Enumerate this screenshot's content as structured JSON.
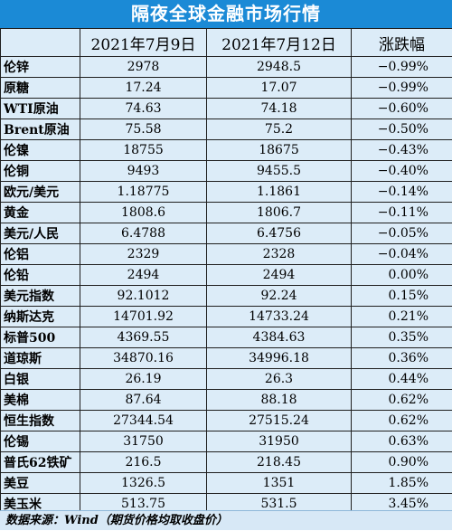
{
  "title": "隔夜全球金融市场行情",
  "headers": [
    "",
    "2021年7月9日",
    "2021年7月12日",
    "涨跌幅"
  ],
  "rows": [
    {
      "name": "伦锌",
      "d1": "2978",
      "d2": "2948.5",
      "chg": "−0.99%"
    },
    {
      "name": "原糖",
      "d1": "17.24",
      "d2": "17.07",
      "chg": "−0.99%"
    },
    {
      "name": "WTI原油",
      "d1": "74.63",
      "d2": "74.18",
      "chg": "−0.60%"
    },
    {
      "name": "Brent原油",
      "d1": "75.58",
      "d2": "75.2",
      "chg": "−0.50%"
    },
    {
      "name": "伦镍",
      "d1": "18755",
      "d2": "18675",
      "chg": "−0.43%"
    },
    {
      "name": "伦铜",
      "d1": "9493",
      "d2": "9455.5",
      "chg": "−0.40%"
    },
    {
      "name": "欧元/美元",
      "d1": "1.18775",
      "d2": "1.1861",
      "chg": "−0.14%"
    },
    {
      "name": "黄金",
      "d1": "1808.6",
      "d2": "1806.7",
      "chg": "−0.11%"
    },
    {
      "name": "美元/人民",
      "d1": "6.4788",
      "d2": "6.4756",
      "chg": "−0.05%"
    },
    {
      "name": "伦铝",
      "d1": "2329",
      "d2": "2328",
      "chg": "−0.04%"
    },
    {
      "name": "伦铅",
      "d1": "2494",
      "d2": "2494",
      "chg": "0.00%"
    },
    {
      "name": "美元指数",
      "d1": "92.1012",
      "d2": "92.24",
      "chg": "0.15%"
    },
    {
      "name": "纳斯达克",
      "d1": "14701.92",
      "d2": "14733.24",
      "chg": "0.21%"
    },
    {
      "name": "标普500",
      "d1": "4369.55",
      "d2": "4384.63",
      "chg": "0.35%"
    },
    {
      "name": "道琼斯",
      "d1": "34870.16",
      "d2": "34996.18",
      "chg": "0.36%"
    },
    {
      "name": "白银",
      "d1": "26.19",
      "d2": "26.3",
      "chg": "0.44%"
    },
    {
      "name": "美棉",
      "d1": "87.64",
      "d2": "88.18",
      "chg": "0.62%"
    },
    {
      "name": "恒生指数",
      "d1": "27344.54",
      "d2": "27515.24",
      "chg": "0.62%"
    },
    {
      "name": "伦锡",
      "d1": "31750",
      "d2": "31950",
      "chg": "0.63%"
    },
    {
      "name": "普氏62铁矿",
      "d1": "216.5",
      "d2": "218.45",
      "chg": "0.90%"
    },
    {
      "name": "美豆",
      "d1": "1326.5",
      "d2": "1351",
      "chg": "1.85%"
    },
    {
      "name": "美玉米",
      "d1": "513.75",
      "d2": "531.5",
      "chg": "3.45%"
    }
  ],
  "footer": "数据来源：Wind（期货价格均取收盘价）",
  "colors": {
    "title_bg": "#1b8ad6",
    "table_bg": "#dcecf8",
    "border": "#1f1f1f"
  }
}
